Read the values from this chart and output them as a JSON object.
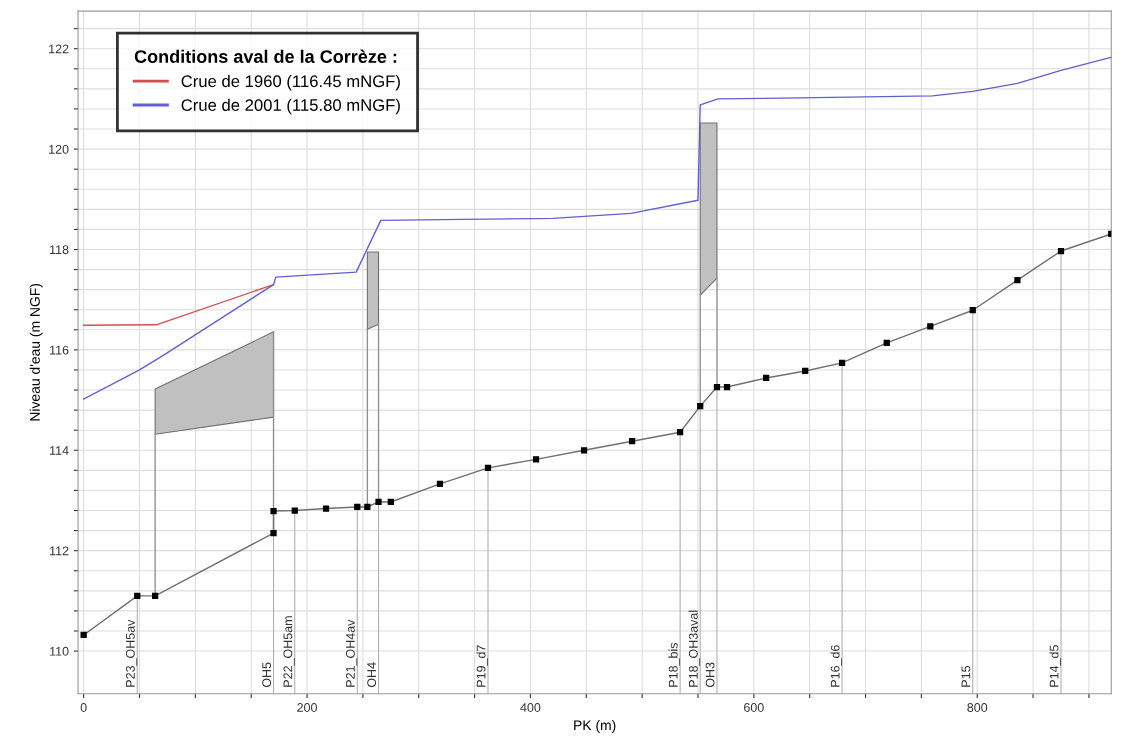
{
  "chart_data": {
    "type": "line",
    "xlabel": "PK (m)",
    "ylabel": "Niveau d'eau (m NGF)",
    "legend_title": "Conditions aval de la Corrèze :",
    "legend": "top left",
    "grid": true,
    "xlim": [
      -5,
      920
    ],
    "ylim": [
      109.15,
      122.75
    ],
    "xticks": [
      0,
      {
        "value": 50,
        "label": null
      },
      {
        "value": 100,
        "label": null
      },
      {
        "value": 150,
        "label": null
      },
      200,
      {
        "value": 250,
        "label": null
      },
      {
        "value": 300,
        "label": null
      },
      {
        "value": 350,
        "label": null
      },
      400,
      {
        "value": 450,
        "label": null
      },
      {
        "value": 500,
        "label": null
      },
      {
        "value": 550,
        "label": null
      },
      600,
      {
        "value": 650,
        "label": null
      },
      {
        "value": 700,
        "label": null
      },
      {
        "value": 750,
        "label": null
      },
      800,
      {
        "value": 850,
        "label": null
      },
      {
        "value": 900,
        "label": null
      }
    ],
    "yticks": [
      110,
      {
        "value": 110.4,
        "label": null
      },
      {
        "value": 110.8,
        "label": null
      },
      {
        "value": 111.2,
        "label": null
      },
      {
        "value": 111.6,
        "label": null
      },
      112,
      {
        "value": 112.4,
        "label": null
      },
      {
        "value": 112.8,
        "label": null
      },
      {
        "value": 113.2,
        "label": null
      },
      {
        "value": 113.6,
        "label": null
      },
      114,
      {
        "value": 114.4,
        "label": null
      },
      {
        "value": 114.8,
        "label": null
      },
      {
        "value": 115.2,
        "label": null
      },
      {
        "value": 115.6,
        "label": null
      },
      116,
      {
        "value": 116.4,
        "label": null
      },
      {
        "value": 116.8,
        "label": null
      },
      {
        "value": 117.2,
        "label": null
      },
      {
        "value": 117.6,
        "label": null
      },
      118,
      {
        "value": 118.4,
        "label": null
      },
      {
        "value": 118.8,
        "label": null
      },
      {
        "value": 119.2,
        "label": null
      },
      {
        "value": 119.6,
        "label": null
      },
      120,
      {
        "value": 120.4,
        "label": null
      },
      {
        "value": 120.8,
        "label": null
      },
      {
        "value": 121.2,
        "label": null
      },
      {
        "value": 121.6,
        "label": null
      },
      122,
      {
        "value": 122.4,
        "label": null
      }
    ],
    "series": [
      {
        "x": [
          64,
          170
        ],
        "values": [
          null,
          null
        ],
        "lower": [
          114.32,
          114.66
        ],
        "upper": [
          115.22,
          116.36
        ],
        "color": "#c0c0c0"
      },
      {
        "x": [
          254,
          264
        ],
        "values": [
          null,
          null
        ],
        "lower": [
          116.41,
          116.51
        ],
        "upper": [
          117.95,
          117.95
        ],
        "color": "#c0c0c0"
      },
      {
        "x": [
          552,
          567
        ],
        "values": [
          null,
          null
        ],
        "lower": [
          117.09,
          117.43
        ],
        "upper": [
          120.52,
          120.52
        ],
        "color": "#c0c0c0"
      },
      {
        "x": [
          64,
          64
        ],
        "values": [
          111.1,
          114.32
        ],
        "color": "#909090"
      },
      {
        "x": [
          170,
          170
        ],
        "values": [
          112.35,
          116.36
        ],
        "color": "#909090"
      },
      {
        "x": [
          254,
          254
        ],
        "values": [
          112.87,
          116.41
        ],
        "color": "#909090"
      },
      {
        "x": [
          264,
          264
        ],
        "values": [
          112.97,
          116.51
        ],
        "color": "#909090"
      },
      {
        "x": [
          552,
          552
        ],
        "values": [
          114.88,
          117.09
        ],
        "color": "#909090"
      },
      {
        "x": [
          567,
          567
        ],
        "values": [
          115.26,
          117.43
        ],
        "color": "#909090"
      },
      {
        "x": [
          0,
          48,
          64,
          170,
          170,
          189,
          217,
          245,
          254,
          264,
          275,
          319,
          362,
          405,
          448,
          491,
          534,
          552,
          567,
          576,
          611,
          646,
          679,
          719,
          758,
          796,
          836,
          875,
          920
        ],
        "values": [
          110.32,
          111.1,
          111.1,
          112.35,
          112.79,
          112.8,
          112.84,
          112.87,
          112.87,
          112.97,
          112.97,
          113.33,
          113.65,
          113.82,
          114.0,
          114.18,
          114.36,
          114.88,
          115.26,
          115.26,
          115.44,
          115.58,
          115.74,
          116.14,
          116.47,
          116.79,
          117.39,
          117.97,
          118.31
        ],
        "color": "#707070",
        "marker": "square"
      },
      {
        "name": "Crue de 1960 (116.45 mNGF)",
        "x": [
          0,
          65,
          170
        ],
        "values": [
          116.49,
          116.5,
          117.3
        ],
        "color": "#d05050",
        "marker": "none"
      },
      {
        "name": "Crue de 2001 (115.80 mNGF)",
        "x": [
          0,
          50,
          72,
          170,
          172,
          244,
          266,
          340,
          420,
          490,
          550,
          552,
          568,
          640,
          760,
          796,
          836,
          875,
          920
        ],
        "values": [
          115.02,
          115.6,
          115.9,
          117.3,
          117.45,
          117.55,
          118.58,
          118.6,
          118.62,
          118.72,
          118.98,
          120.88,
          121.0,
          121.02,
          121.06,
          121.15,
          121.31,
          121.57,
          121.83
        ],
        "color": "#6060d0",
        "marker": "none"
      }
    ],
    "annotations": [
      {
        "text": "P23_OH5av",
        "x": 48,
        "y": 111.1
      },
      {
        "text": "OH5",
        "x": 170,
        "y": 112.35
      },
      {
        "text": "P22_OH5am",
        "x": 189,
        "y": 112.8
      },
      {
        "text": "P21_OH4av",
        "x": 245,
        "y": 112.87
      },
      {
        "text": "OH4",
        "x": 264,
        "y": 112.97
      },
      {
        "text": "P19_d7",
        "x": 362,
        "y": 113.65
      },
      {
        "text": "P18_bis",
        "x": 534,
        "y": 114.36
      },
      {
        "text": "P18_OH3aval",
        "x": 552,
        "y": 114.88
      },
      {
        "text": "OH3",
        "x": 567,
        "y": 115.26
      },
      {
        "text": "P16_d6",
        "x": 679,
        "y": 115.74
      },
      {
        "text": "P15",
        "x": 796,
        "y": 116.79
      },
      {
        "text": "P14_d5",
        "x": 875,
        "y": 117.97
      }
    ]
  }
}
